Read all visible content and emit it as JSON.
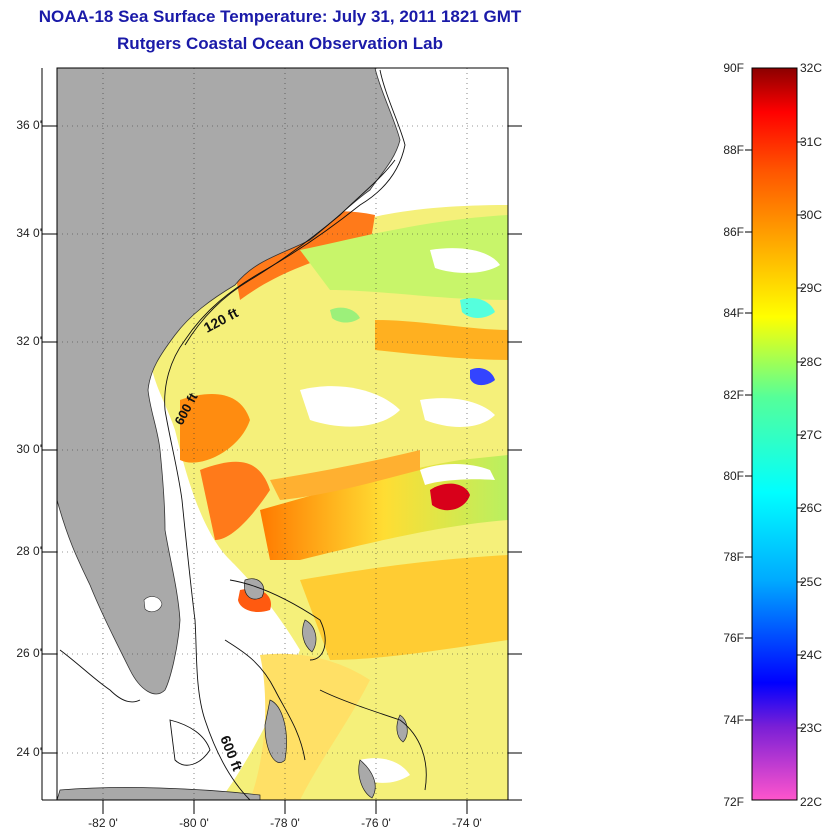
{
  "title": {
    "line1": "NOAA-18 Sea Surface Temperature:  July 31, 2011 1821 GMT",
    "line2": "Rutgers Coastal Ocean Observation Lab"
  },
  "map": {
    "lat_ticks": [
      "36 0'",
      "34 0'",
      "32 0'",
      "30 0'",
      "28 0'",
      "26 0'",
      "24 0'"
    ],
    "lon_ticks": [
      "-82 0'",
      "-80 0'",
      "-78 0'",
      "-76 0'",
      "-74 0'"
    ],
    "contour_labels": [
      "120 ft",
      "600 ft",
      "600 ft"
    ],
    "lat_range": [
      23,
      37
    ],
    "lon_range": [
      -83,
      -73
    ],
    "land_color": "#a9a9a9"
  },
  "colorbar": {
    "fahrenheit_labels": [
      "90F",
      "88F",
      "86F",
      "84F",
      "82F",
      "80F",
      "78F",
      "76F",
      "74F",
      "72F"
    ],
    "celsius_labels": [
      "32C",
      "31C",
      "30C",
      "29C",
      "28C",
      "27C",
      "26C",
      "25C",
      "24C",
      "23C",
      "22C"
    ],
    "range_c": [
      22,
      32
    ],
    "colors": [
      "#ff55cc",
      "#7a1fd6",
      "#0000ff",
      "#00aaff",
      "#00ffff",
      "#55ff99",
      "#ffff00",
      "#ffaa00",
      "#ff5500",
      "#ff0000",
      "#8b0000"
    ]
  }
}
